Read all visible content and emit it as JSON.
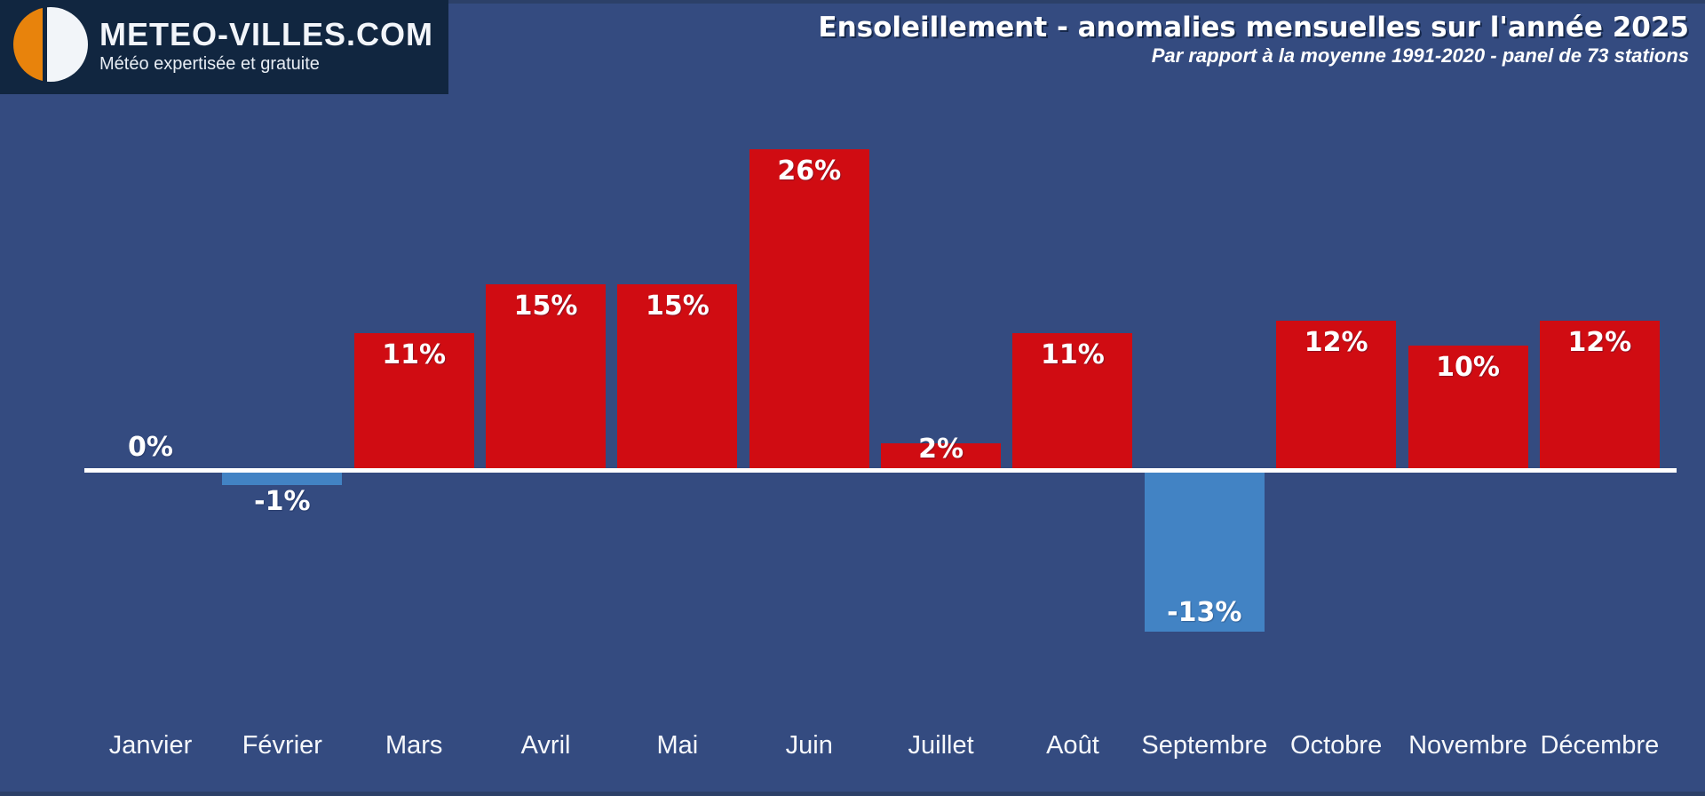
{
  "header": {
    "logo": {
      "brand": "METEO-VILLES.COM",
      "tagline": "Météo expertisée et gratuite"
    },
    "title": "Ensoleillement - anomalies mensuelles sur l'année 2025",
    "subtitle": "Par rapport à la moyenne 1991-2020 - panel de 73 stations"
  },
  "chart_data": {
    "type": "bar",
    "title": "Ensoleillement - anomalies mensuelles sur l'année 2025",
    "subtitle": "Par rapport à la moyenne 1991-2020 - panel de 73 stations",
    "unit": "%",
    "categories": [
      "Janvier",
      "Février",
      "Mars",
      "Avril",
      "Mai",
      "Juin",
      "Juillet",
      "Août",
      "Septembre",
      "Octobre",
      "Novembre",
      "Décembre"
    ],
    "slugs": [
      "janvier",
      "fevrier",
      "mars",
      "avril",
      "mai",
      "juin",
      "juillet",
      "aout",
      "septembre",
      "octobre",
      "novembre",
      "decembre"
    ],
    "values": [
      0,
      -1,
      11,
      15,
      15,
      26,
      2,
      11,
      -13,
      12,
      10,
      12
    ],
    "value_labels": [
      "0%",
      "-1%",
      "11%",
      "15%",
      "15%",
      "26%",
      "2%",
      "11%",
      "-13%",
      "12%",
      "10%",
      "12%"
    ],
    "baseline": 0,
    "ylim": [
      -15,
      28
    ],
    "grid": false,
    "legend": null,
    "y_axis_shown": false,
    "colors": {
      "positive_bar": "#d00c12",
      "negative_bar": "#4283c4",
      "background": "#344b80",
      "edge_strip": "#2c4068",
      "axis_line": "#ffffff",
      "logo_background": "#112640",
      "logo_orange": "#e8830c",
      "logo_white": "#f2f5f9",
      "text": "#ffffff"
    }
  }
}
